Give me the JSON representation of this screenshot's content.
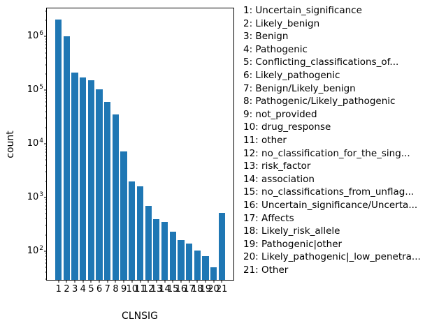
{
  "chart_data": {
    "type": "bar",
    "title": "",
    "xlabel": "CLNSIG",
    "ylabel": "count",
    "yscale": "log",
    "grid": false,
    "bar_color": "#1f77b4",
    "categories": [
      "1",
      "2",
      "3",
      "4",
      "5",
      "6",
      "7",
      "8",
      "9",
      "10",
      "11",
      "12",
      "13",
      "14",
      "15",
      "16",
      "17",
      "18",
      "19",
      "20",
      "21"
    ],
    "values": [
      2100000,
      1000000,
      212000,
      174000,
      153000,
      105000,
      61000,
      35400,
      7150,
      2000,
      1600,
      700,
      390,
      352,
      229,
      162,
      139,
      101,
      80,
      50,
      510
    ],
    "ylim": [
      29,
      3360000
    ],
    "ytick_exponents": [
      2,
      3,
      4,
      5,
      6
    ],
    "legend_position": "right-outside",
    "legend_entries": [
      "1: Uncertain_significance",
      "2: Likely_benign",
      "3: Benign",
      "4: Pathogenic",
      "5: Conflicting_classifications_of...",
      "6: Likely_pathogenic",
      "7: Benign/Likely_benign",
      "8: Pathogenic/Likely_pathogenic",
      "9: not_provided",
      "10: drug_response",
      "11: other",
      "12: no_classification_for_the_sing...",
      "13: risk_factor",
      "14: association",
      "15: no_classifications_from_unflag...",
      "16: Uncertain_significance/Uncerta...",
      "17: Affects",
      "18: Likely_risk_allele",
      "19: Pathogenic|other",
      "20: Likely_pathogenic|_low_penetra...",
      "21: Other"
    ]
  }
}
